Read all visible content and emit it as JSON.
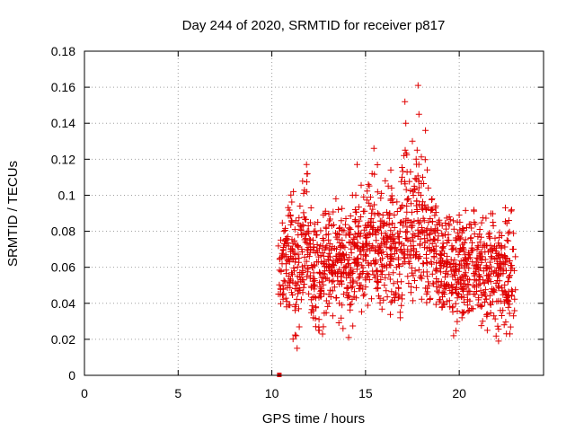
{
  "chart_data": {
    "type": "scatter",
    "title": "Day 244 of 2020, SRMTID for receiver p817",
    "xlabel": "GPS time / hours",
    "ylabel": "SRMTID / TECUs",
    "xlim": [
      0,
      24.5
    ],
    "ylim": [
      0,
      0.18
    ],
    "xticks": [
      0,
      5,
      10,
      15,
      20
    ],
    "yticks": [
      0,
      0.02,
      0.04,
      0.06,
      0.08,
      0.1,
      0.12,
      0.14,
      0.16,
      0.18
    ],
    "ytick_labels": [
      "0",
      "0.02",
      "0.04",
      "0.06",
      "0.08",
      "0.1",
      "0.12",
      "0.14",
      "0.16",
      "0.18"
    ],
    "grid": true,
    "marker": "plus",
    "color": "#e00000",
    "data_x_range": [
      10.35,
      23.0
    ],
    "zero_marker": {
      "x": 10.4,
      "y": 0
    },
    "series": [
      {
        "name": "SRMTID",
        "points": [
          [
            10.45,
            0.045
          ],
          [
            10.5,
            0.058
          ],
          [
            10.55,
            0.062
          ],
          [
            10.6,
            0.048
          ],
          [
            10.65,
            0.066
          ],
          [
            10.7,
            0.052
          ],
          [
            10.75,
            0.072
          ],
          [
            10.8,
            0.041
          ],
          [
            10.85,
            0.077
          ],
          [
            10.9,
            0.055
          ],
          [
            10.95,
            0.063
          ],
          [
            11.0,
            0.089
          ],
          [
            11.05,
            0.046
          ],
          [
            11.1,
            0.07
          ],
          [
            11.15,
            0.102
          ],
          [
            11.2,
            0.058
          ],
          [
            11.25,
            0.036
          ],
          [
            11.3,
            0.022
          ],
          [
            11.35,
            0.015
          ],
          [
            11.4,
            0.078
          ],
          [
            11.45,
            0.065
          ],
          [
            11.5,
            0.094
          ],
          [
            11.55,
            0.052
          ],
          [
            11.6,
            0.07
          ],
          [
            11.65,
            0.046
          ],
          [
            11.7,
            0.101
          ],
          [
            11.75,
            0.061
          ],
          [
            11.8,
            0.074
          ],
          [
            11.85,
            0.117
          ],
          [
            11.9,
            0.112
          ],
          [
            11.95,
            0.083
          ],
          [
            12.0,
            0.066
          ],
          [
            12.05,
            0.054
          ],
          [
            12.1,
            0.042
          ],
          [
            12.15,
            0.06
          ],
          [
            12.2,
            0.075
          ],
          [
            12.25,
            0.071
          ],
          [
            12.3,
            0.05
          ],
          [
            12.35,
            0.038
          ],
          [
            12.4,
            0.063
          ],
          [
            12.45,
            0.085
          ],
          [
            12.5,
            0.025
          ],
          [
            12.55,
            0.057
          ],
          [
            12.6,
            0.072
          ],
          [
            12.65,
            0.048
          ],
          [
            12.7,
            0.068
          ],
          [
            12.75,
            0.027
          ],
          [
            12.8,
            0.062
          ],
          [
            12.85,
            0.09
          ],
          [
            12.9,
            0.078
          ],
          [
            12.95,
            0.054
          ],
          [
            13.0,
            0.066
          ],
          [
            13.05,
            0.04
          ],
          [
            13.1,
            0.073
          ],
          [
            13.15,
            0.058
          ],
          [
            13.2,
            0.083
          ],
          [
            13.25,
            0.033
          ],
          [
            13.3,
            0.061
          ],
          [
            13.35,
            0.049
          ],
          [
            13.4,
            0.079
          ],
          [
            13.45,
            0.07
          ],
          [
            13.5,
            0.055
          ],
          [
            13.55,
            0.092
          ],
          [
            13.6,
            0.04
          ],
          [
            13.65,
            0.066
          ],
          [
            13.7,
            0.052
          ],
          [
            13.75,
            0.075
          ],
          [
            13.8,
            0.026
          ],
          [
            13.85,
            0.06
          ],
          [
            13.9,
            0.071
          ],
          [
            13.95,
            0.087
          ],
          [
            14.0,
            0.046
          ],
          [
            14.05,
            0.064
          ],
          [
            14.1,
            0.021
          ],
          [
            14.15,
            0.057
          ],
          [
            14.2,
            0.081
          ],
          [
            14.25,
            0.068
          ],
          [
            14.3,
            0.1
          ],
          [
            14.35,
            0.052
          ],
          [
            14.4,
            0.073
          ],
          [
            14.45,
            0.092
          ],
          [
            14.5,
            0.043
          ],
          [
            14.55,
            0.117
          ],
          [
            14.6,
            0.065
          ],
          [
            14.65,
            0.079
          ],
          [
            14.7,
            0.05
          ],
          [
            14.75,
            0.088
          ],
          [
            14.8,
            0.061
          ],
          [
            14.85,
            0.071
          ],
          [
            14.9,
            0.099
          ],
          [
            14.95,
            0.045
          ],
          [
            15.0,
            0.067
          ],
          [
            15.05,
            0.082
          ],
          [
            15.1,
            0.055
          ],
          [
            15.15,
            0.106
          ],
          [
            15.2,
            0.073
          ],
          [
            15.25,
            0.094
          ],
          [
            15.3,
            0.062
          ],
          [
            15.35,
            0.112
          ],
          [
            15.4,
            0.085
          ],
          [
            15.45,
            0.126
          ],
          [
            15.5,
            0.069
          ],
          [
            15.55,
            0.078
          ],
          [
            15.6,
            0.052
          ],
          [
            15.65,
            0.09
          ],
          [
            15.7,
            0.044
          ],
          [
            15.75,
            0.071
          ],
          [
            15.8,
            0.064
          ],
          [
            15.85,
            0.101
          ],
          [
            15.9,
            0.058
          ],
          [
            15.95,
            0.083
          ],
          [
            16.0,
            0.074
          ],
          [
            16.05,
            0.108
          ],
          [
            16.1,
            0.047
          ],
          [
            16.15,
            0.067
          ],
          [
            16.2,
            0.089
          ],
          [
            16.25,
            0.056
          ],
          [
            16.3,
            0.077
          ],
          [
            16.35,
            0.114
          ],
          [
            16.4,
            0.065
          ],
          [
            16.45,
            0.096
          ],
          [
            16.5,
            0.051
          ],
          [
            16.55,
            0.082
          ],
          [
            16.6,
            0.071
          ],
          [
            16.65,
            0.06
          ],
          [
            16.7,
            0.091
          ],
          [
            16.75,
            0.043
          ],
          [
            16.8,
            0.074
          ],
          [
            16.85,
            0.035
          ],
          [
            16.9,
            0.085
          ],
          [
            16.95,
            0.11
          ],
          [
            17.0,
            0.062
          ],
          [
            17.05,
            0.122
          ],
          [
            17.1,
            0.152
          ],
          [
            17.15,
            0.14
          ],
          [
            17.2,
            0.076
          ],
          [
            17.25,
            0.055
          ],
          [
            17.3,
            0.098
          ],
          [
            17.35,
            0.067
          ],
          [
            17.4,
            0.113
          ],
          [
            17.45,
            0.085
          ],
          [
            17.5,
            0.13
          ],
          [
            17.55,
            0.072
          ],
          [
            17.6,
            0.105
          ],
          [
            17.65,
            0.058
          ],
          [
            17.7,
            0.12
          ],
          [
            17.75,
            0.091
          ],
          [
            17.8,
            0.161
          ],
          [
            17.85,
            0.145
          ],
          [
            17.9,
            0.066
          ],
          [
            17.95,
            0.1
          ],
          [
            18.0,
            0.082
          ],
          [
            18.05,
            0.11
          ],
          [
            18.1,
            0.062
          ],
          [
            18.15,
            0.076
          ],
          [
            18.2,
            0.136
          ],
          [
            18.25,
            0.092
          ],
          [
            18.3,
            0.055
          ],
          [
            18.35,
            0.104
          ],
          [
            18.4,
            0.071
          ],
          [
            18.45,
            0.087
          ],
          [
            18.5,
            0.063
          ],
          [
            18.55,
            0.098
          ],
          [
            18.6,
            0.051
          ],
          [
            18.65,
            0.08
          ],
          [
            18.7,
            0.069
          ],
          [
            18.75,
            0.094
          ],
          [
            18.8,
            0.058
          ],
          [
            18.85,
            0.075
          ],
          [
            18.9,
            0.046
          ],
          [
            18.95,
            0.084
          ],
          [
            19.0,
            0.065
          ],
          [
            19.05,
            0.052
          ],
          [
            19.1,
            0.071
          ],
          [
            19.15,
            0.04
          ],
          [
            19.2,
            0.062
          ],
          [
            19.25,
            0.078
          ],
          [
            19.3,
            0.049
          ],
          [
            19.35,
            0.066
          ],
          [
            19.4,
            0.056
          ],
          [
            19.45,
            0.084
          ],
          [
            19.5,
            0.038
          ],
          [
            19.55,
            0.06
          ],
          [
            19.6,
            0.07
          ],
          [
            19.65,
            0.046
          ],
          [
            19.7,
            0.022
          ],
          [
            19.75,
            0.064
          ],
          [
            19.8,
            0.053
          ],
          [
            19.85,
            0.075
          ],
          [
            19.9,
            0.043
          ],
          [
            19.95,
            0.067
          ],
          [
            20.0,
            0.089
          ],
          [
            20.05,
            0.054
          ],
          [
            20.1,
            0.061
          ],
          [
            20.15,
            0.035
          ],
          [
            20.2,
            0.071
          ],
          [
            20.25,
            0.048
          ],
          [
            20.3,
            0.064
          ],
          [
            20.35,
            0.057
          ],
          [
            20.4,
            0.082
          ],
          [
            20.45,
            0.042
          ],
          [
            20.5,
            0.068
          ],
          [
            20.55,
            0.053
          ],
          [
            20.6,
            0.076
          ],
          [
            20.65,
            0.037
          ],
          [
            20.7,
            0.063
          ],
          [
            20.75,
            0.05
          ],
          [
            20.8,
            0.085
          ],
          [
            20.85,
            0.045
          ],
          [
            20.9,
            0.059
          ],
          [
            20.95,
            0.07
          ],
          [
            21.0,
            0.039
          ],
          [
            21.05,
            0.056
          ],
          [
            21.1,
            0.081
          ],
          [
            21.15,
            0.047
          ],
          [
            21.2,
            0.064
          ],
          [
            21.25,
            0.03
          ],
          [
            21.3,
            0.058
          ],
          [
            21.35,
            0.072
          ],
          [
            21.4,
            0.044
          ],
          [
            21.45,
            0.061
          ],
          [
            21.5,
            0.025
          ],
          [
            21.55,
            0.052
          ],
          [
            21.6,
            0.077
          ],
          [
            21.65,
            0.04
          ],
          [
            21.7,
            0.066
          ],
          [
            21.75,
            0.048
          ],
          [
            21.8,
            0.085
          ],
          [
            21.85,
            0.033
          ],
          [
            21.9,
            0.058
          ],
          [
            21.95,
            0.069
          ],
          [
            22.0,
            0.041
          ],
          [
            22.05,
            0.055
          ],
          [
            22.1,
            0.019
          ],
          [
            22.15,
            0.063
          ],
          [
            22.2,
            0.036
          ],
          [
            22.25,
            0.072
          ],
          [
            22.3,
            0.047
          ],
          [
            22.35,
            0.058
          ],
          [
            22.4,
            0.028
          ],
          [
            22.45,
            0.066
          ],
          [
            22.5,
            0.042
          ],
          [
            22.55,
            0.075
          ],
          [
            22.6,
            0.052
          ],
          [
            22.65,
            0.086
          ],
          [
            22.7,
            0.023
          ],
          [
            22.75,
            0.061
          ],
          [
            22.8,
            0.044
          ],
          [
            22.85,
            0.07
          ],
          [
            22.9,
            0.033
          ]
        ]
      }
    ]
  }
}
